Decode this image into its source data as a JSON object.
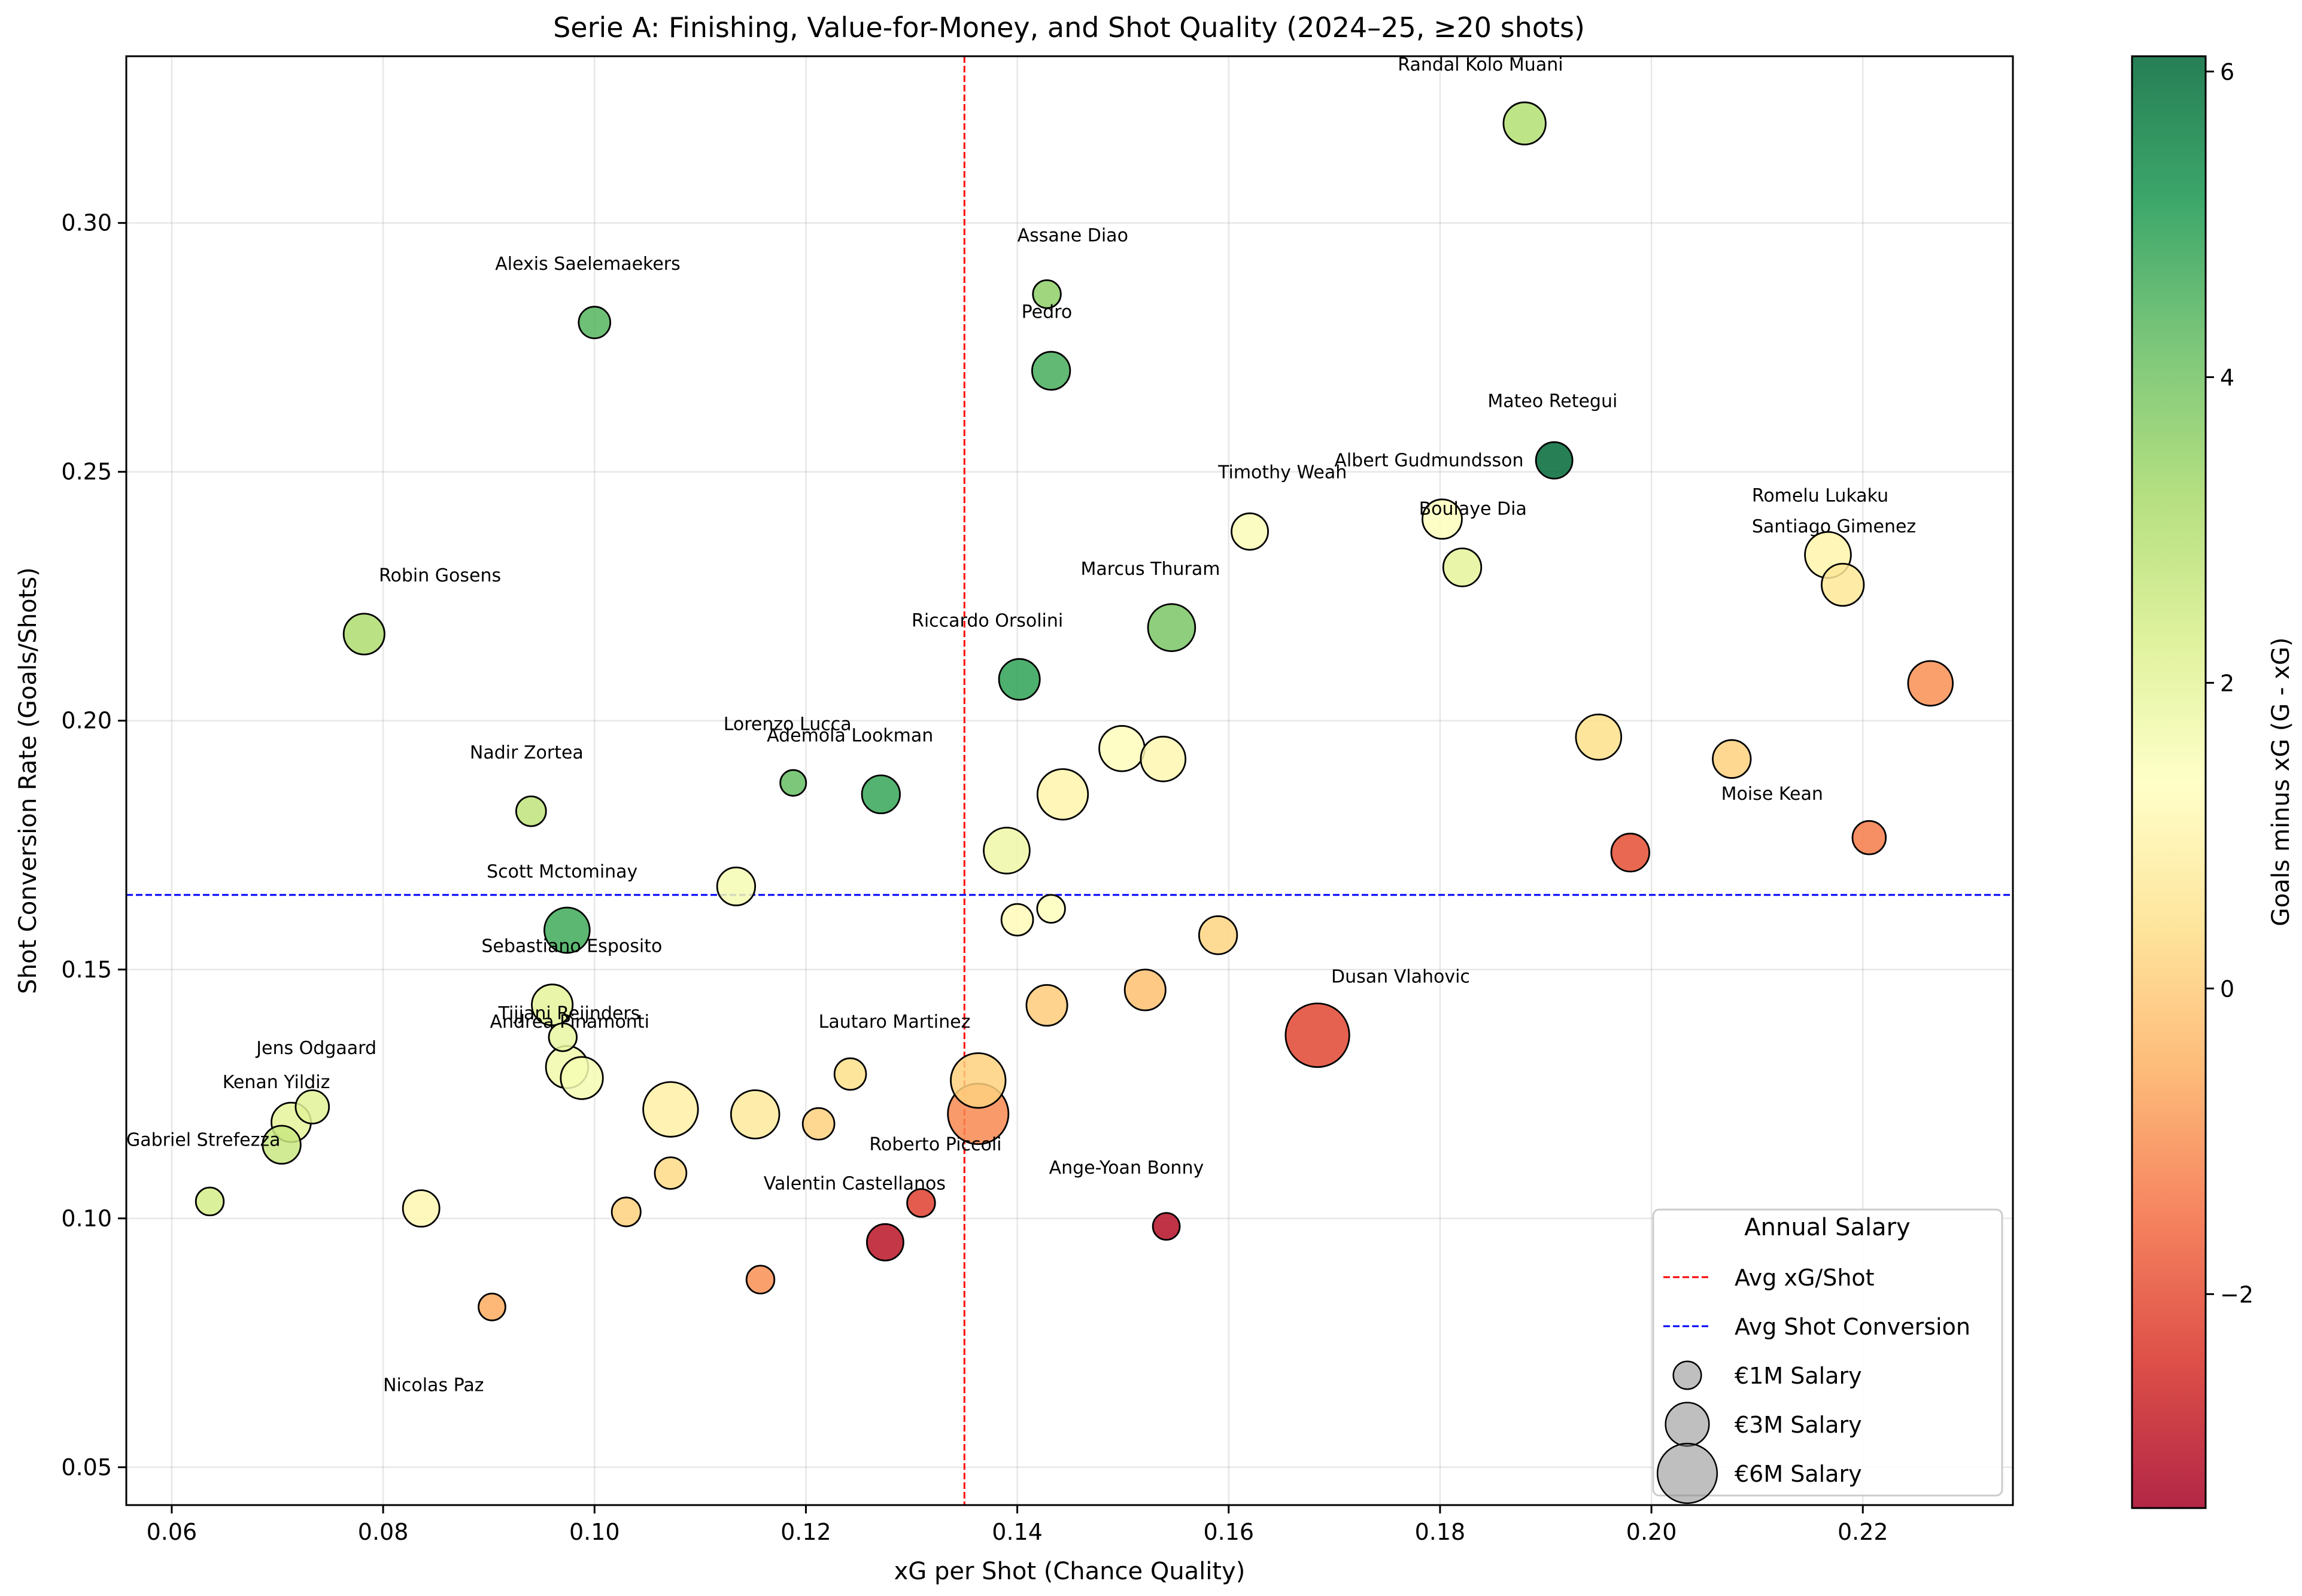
{
  "chart_data": {
    "type": "scatter",
    "title": "Serie A: Finishing, Value-for-Money, and Shot Quality (2024–25, ≥20 shots)",
    "xlabel": "xG per Shot (Chance Quality)",
    "ylabel": "Shot Conversion Rate (Goals/Shots)",
    "xlim": [
      0.0557,
      0.2342
    ],
    "ylim": [
      0.0424,
      0.3335
    ],
    "xticks": [
      {
        "v": 0.06,
        "label": "0.06"
      },
      {
        "v": 0.08,
        "label": "0.08"
      },
      {
        "v": 0.1,
        "label": "0.10"
      },
      {
        "v": 0.12,
        "label": "0.12"
      },
      {
        "v": 0.14,
        "label": "0.14"
      },
      {
        "v": 0.16,
        "label": "0.16"
      },
      {
        "v": 0.18,
        "label": "0.18"
      },
      {
        "v": 0.2,
        "label": "0.20"
      },
      {
        "v": 0.22,
        "label": "0.22"
      }
    ],
    "yticks": [
      {
        "v": 0.05,
        "label": "0.05"
      },
      {
        "v": 0.1,
        "label": "0.10"
      },
      {
        "v": 0.15,
        "label": "0.15"
      },
      {
        "v": 0.2,
        "label": "0.20"
      },
      {
        "v": 0.25,
        "label": "0.25"
      },
      {
        "v": 0.3,
        "label": "0.30"
      }
    ],
    "grid": true,
    "avg_xg_per_shot": 0.135,
    "avg_shot_conversion": 0.165,
    "colorbar": {
      "label": "Goals minus xG (G - xG)",
      "min": -3.4,
      "max": 6.1,
      "ticks": [
        {
          "v": -2,
          "label": "−2"
        },
        {
          "v": 0,
          "label": "0"
        },
        {
          "v": 2,
          "label": "2"
        },
        {
          "v": 4,
          "label": "4"
        },
        {
          "v": 6,
          "label": "6"
        }
      ],
      "colormap": "RdYlGn",
      "stops": [
        "#a50026",
        "#d73027",
        "#f46d43",
        "#fdae61",
        "#fee08b",
        "#ffffbf",
        "#d9ef8b",
        "#a6d96a",
        "#66bd63",
        "#1a9850",
        "#006837"
      ]
    },
    "legend": {
      "title": "Annual Salary",
      "position": "lower right",
      "items": [
        {
          "label": "Avg xG/Shot",
          "kind": "line",
          "color": "#ff0000"
        },
        {
          "label": "Avg Shot Conversion",
          "kind": "line",
          "color": "#0000ff"
        },
        {
          "label": "€1M Salary",
          "kind": "bubble",
          "salary_m": 1
        },
        {
          "label": "€3M Salary",
          "kind": "bubble",
          "salary_m": 3
        },
        {
          "label": "€6M Salary",
          "kind": "bubble",
          "salary_m": 6
        }
      ]
    },
    "points": [
      {
        "name": "Randal Kolo Muani",
        "x": 0.188,
        "y": 0.32,
        "g_minus_xg": 3.0,
        "salary_m": 2.8,
        "label_shown": true
      },
      {
        "name": "Assane Diao",
        "x": 0.1428,
        "y": 0.2857,
        "g_minus_xg": 3.6,
        "salary_m": 1.0,
        "label_shown": true
      },
      {
        "name": "Pedro",
        "x": 0.1432,
        "y": 0.2703,
        "g_minus_xg": 4.6,
        "salary_m": 2.2,
        "label_shown": true
      },
      {
        "name": "Alexis Saelemaekers",
        "x": 0.1,
        "y": 0.28,
        "g_minus_xg": 4.4,
        "salary_m": 1.4,
        "label_shown": true
      },
      {
        "name": "Mateo Retegui",
        "x": 0.1908,
        "y": 0.2523,
        "g_minus_xg": 6.1,
        "salary_m": 2.0,
        "label_shown": true
      },
      {
        "name": "Timothy Weah",
        "x": 0.162,
        "y": 0.238,
        "g_minus_xg": 1.5,
        "salary_m": 2.0,
        "label_shown": true
      },
      {
        "name": "Albert Gudmundsson",
        "x": 0.1802,
        "y": 0.2405,
        "g_minus_xg": 1.4,
        "salary_m": 2.4,
        "label_shown": true
      },
      {
        "name": "Boulaye Dia",
        "x": 0.1821,
        "y": 0.2308,
        "g_minus_xg": 2.0,
        "salary_m": 2.2,
        "label_shown": true
      },
      {
        "name": "Romelu Lukaku",
        "x": 0.2167,
        "y": 0.2333,
        "g_minus_xg": 1.0,
        "salary_m": 3.4,
        "label_shown": true
      },
      {
        "name": "Santiago Gimenez",
        "x": 0.2181,
        "y": 0.2273,
        "g_minus_xg": 0.6,
        "salary_m": 2.8,
        "label_shown": true
      },
      {
        "name": "Robin Gosens",
        "x": 0.0782,
        "y": 0.2174,
        "g_minus_xg": 3.1,
        "salary_m": 2.6,
        "label_shown": true
      },
      {
        "name": "Marcus Thuram",
        "x": 0.1546,
        "y": 0.2187,
        "g_minus_xg": 3.9,
        "salary_m": 3.6,
        "label_shown": true
      },
      {
        "name": "Riccardo Orsolini",
        "x": 0.1402,
        "y": 0.2083,
        "g_minus_xg": 4.9,
        "salary_m": 2.6,
        "label_shown": true
      },
      {
        "name": "",
        "x": 0.2264,
        "y": 0.2075,
        "g_minus_xg": -1.0,
        "salary_m": 3.2,
        "label_shown": false
      },
      {
        "name": "",
        "x": 0.195,
        "y": 0.1967,
        "g_minus_xg": 0.4,
        "salary_m": 3.3,
        "label_shown": false
      },
      {
        "name": "",
        "x": 0.1499,
        "y": 0.1944,
        "g_minus_xg": 1.3,
        "salary_m": 3.3,
        "label_shown": false
      },
      {
        "name": "",
        "x": 0.1538,
        "y": 0.1923,
        "g_minus_xg": 1.1,
        "salary_m": 3.2,
        "label_shown": false
      },
      {
        "name": "",
        "x": 0.2076,
        "y": 0.1923,
        "g_minus_xg": 0.1,
        "salary_m": 2.2,
        "label_shown": false
      },
      {
        "name": "Lorenzo Lucca",
        "x": 0.1188,
        "y": 0.1875,
        "g_minus_xg": 4.2,
        "salary_m": 0.8,
        "label_shown": true
      },
      {
        "name": "Ademola Lookman",
        "x": 0.1271,
        "y": 0.1852,
        "g_minus_xg": 4.8,
        "salary_m": 2.2,
        "label_shown": true
      },
      {
        "name": "",
        "x": 0.1443,
        "y": 0.1852,
        "g_minus_xg": 1.0,
        "salary_m": 4.2,
        "label_shown": false
      },
      {
        "name": "Nadir Zortea",
        "x": 0.094,
        "y": 0.1818,
        "g_minus_xg": 2.8,
        "salary_m": 1.2,
        "label_shown": true
      },
      {
        "name": "",
        "x": 0.2206,
        "y": 0.1765,
        "g_minus_xg": -1.3,
        "salary_m": 1.6,
        "label_shown": false
      },
      {
        "name": "",
        "x": 0.139,
        "y": 0.1739,
        "g_minus_xg": 1.8,
        "salary_m": 3.4,
        "label_shown": false
      },
      {
        "name": "Moise Kean",
        "x": 0.198,
        "y": 0.1735,
        "g_minus_xg": -2.0,
        "salary_m": 2.2,
        "label_shown": true
      },
      {
        "name": "",
        "x": 0.1134,
        "y": 0.1667,
        "g_minus_xg": 1.6,
        "salary_m": 2.2,
        "label_shown": false
      },
      {
        "name": "",
        "x": 0.1432,
        "y": 0.1622,
        "g_minus_xg": 1.4,
        "salary_m": 1.0,
        "label_shown": false
      },
      {
        "name": "",
        "x": 0.14,
        "y": 0.16,
        "g_minus_xg": 1.2,
        "salary_m": 1.4,
        "label_shown": false
      },
      {
        "name": "Scott Mctominay",
        "x": 0.0974,
        "y": 0.1579,
        "g_minus_xg": 4.7,
        "salary_m": 3.3,
        "label_shown": true
      },
      {
        "name": "",
        "x": 0.159,
        "y": 0.1569,
        "g_minus_xg": 0.2,
        "salary_m": 2.2,
        "label_shown": false
      },
      {
        "name": "",
        "x": 0.1521,
        "y": 0.1459,
        "g_minus_xg": -0.2,
        "salary_m": 2.6,
        "label_shown": false
      },
      {
        "name": "",
        "x": 0.1428,
        "y": 0.1428,
        "g_minus_xg": 0.0,
        "salary_m": 2.6,
        "label_shown": false
      },
      {
        "name": "Sebastiano Esposito",
        "x": 0.096,
        "y": 0.1429,
        "g_minus_xg": 2.0,
        "salary_m": 2.6,
        "label_shown": true
      },
      {
        "name": "Dusan Vlahovic",
        "x": 0.1684,
        "y": 0.1368,
        "g_minus_xg": -2.1,
        "salary_m": 6.9,
        "label_shown": true
      },
      {
        "name": "Tijjani Reijnders",
        "x": 0.097,
        "y": 0.1364,
        "g_minus_xg": 1.9,
        "salary_m": 1.0,
        "label_shown": true
      },
      {
        "name": "Andrea Pinamonti",
        "x": 0.0974,
        "y": 0.1304,
        "g_minus_xg": 1.7,
        "salary_m": 2.8,
        "label_shown": true
      },
      {
        "name": "",
        "x": 0.0988,
        "y": 0.1282,
        "g_minus_xg": 1.6,
        "salary_m": 2.8,
        "label_shown": false
      },
      {
        "name": "Lautaro Martinez",
        "x": 0.1363,
        "y": 0.1277,
        "g_minus_xg": 0.1,
        "salary_m": 5.0,
        "label_shown": true
      },
      {
        "name": "",
        "x": 0.1242,
        "y": 0.129,
        "g_minus_xg": 0.4,
        "salary_m": 1.4,
        "label_shown": false
      },
      {
        "name": "",
        "x": 0.1072,
        "y": 0.1219,
        "g_minus_xg": 0.9,
        "salary_m": 5.0,
        "label_shown": false
      },
      {
        "name": "",
        "x": 0.1152,
        "y": 0.1209,
        "g_minus_xg": 0.7,
        "salary_m": 3.8,
        "label_shown": false
      },
      {
        "name": "",
        "x": 0.1363,
        "y": 0.121,
        "g_minus_xg": -1.1,
        "salary_m": 6.2,
        "label_shown": false
      },
      {
        "name": "",
        "x": 0.1212,
        "y": 0.119,
        "g_minus_xg": 0.1,
        "salary_m": 1.4,
        "label_shown": false
      },
      {
        "name": "Jens Odgaard",
        "x": 0.0733,
        "y": 0.1224,
        "g_minus_xg": 2.1,
        "salary_m": 1.6,
        "label_shown": true
      },
      {
        "name": "Kenan Yildiz",
        "x": 0.0713,
        "y": 0.1193,
        "g_minus_xg": 2.0,
        "salary_m": 2.4,
        "label_shown": true
      },
      {
        "name": "Gabriel Strefezza",
        "x": 0.0704,
        "y": 0.1148,
        "g_minus_xg": 2.6,
        "salary_m": 2.2,
        "label_shown": true
      },
      {
        "name": "Roberto Piccoli",
        "x": 0.1309,
        "y": 0.1031,
        "g_minus_xg": -2.2,
        "salary_m": 1.0,
        "label_shown": true
      },
      {
        "name": "",
        "x": 0.1072,
        "y": 0.1091,
        "g_minus_xg": 0.3,
        "salary_m": 1.4,
        "label_shown": false
      },
      {
        "name": "",
        "x": 0.0636,
        "y": 0.1034,
        "g_minus_xg": 2.4,
        "salary_m": 1.0,
        "label_shown": false
      },
      {
        "name": "",
        "x": 0.0836,
        "y": 0.102,
        "g_minus_xg": 1.1,
        "salary_m": 2.0,
        "label_shown": false
      },
      {
        "name": "",
        "x": 0.103,
        "y": 0.1013,
        "g_minus_xg": 0.1,
        "salary_m": 1.1,
        "label_shown": false
      },
      {
        "name": "Valentin Castellanos",
        "x": 0.1275,
        "y": 0.0952,
        "g_minus_xg": -3.0,
        "salary_m": 2.0,
        "label_shown": true
      },
      {
        "name": "Ange-Yoan Bonny",
        "x": 0.1541,
        "y": 0.0984,
        "g_minus_xg": -3.1,
        "salary_m": 0.9,
        "label_shown": true
      },
      {
        "name": "",
        "x": 0.1157,
        "y": 0.0877,
        "g_minus_xg": -1.0,
        "salary_m": 1.0,
        "label_shown": false
      },
      {
        "name": "Nicolas Paz",
        "x": 0.0903,
        "y": 0.0822,
        "g_minus_xg": -0.6,
        "salary_m": 0.9,
        "label_shown": true
      }
    ],
    "labels": [
      {
        "name": "Randal Kolo Muani",
        "lx": 0.176,
        "ly": 0.3306
      },
      {
        "name": "Assane Diao",
        "lx": 0.14,
        "ly": 0.2963
      },
      {
        "name": "Pedro",
        "lx": 0.1404,
        "ly": 0.2809
      },
      {
        "name": "Alexis Saelemaekers",
        "lx": 0.0906,
        "ly": 0.2906
      },
      {
        "name": "Mateo Retegui",
        "lx": 0.1845,
        "ly": 0.263
      },
      {
        "name": "Timothy Weah",
        "lx": 0.159,
        "ly": 0.2487
      },
      {
        "name": "Albert Gudmundsson",
        "lx": 0.17,
        "ly": 0.2511
      },
      {
        "name": "Boulaye Dia",
        "lx": 0.178,
        "ly": 0.2414
      },
      {
        "name": "Romelu Lukaku",
        "lx": 0.2095,
        "ly": 0.244
      },
      {
        "name": "Santiago Gimenez",
        "lx": 0.2095,
        "ly": 0.2378
      },
      {
        "name": "Robin Gosens",
        "lx": 0.0796,
        "ly": 0.228
      },
      {
        "name": "Marcus Thuram",
        "lx": 0.146,
        "ly": 0.2293
      },
      {
        "name": "Riccardo Orsolini",
        "lx": 0.13,
        "ly": 0.2189
      },
      {
        "name": "Lorenzo Lucca",
        "lx": 0.1122,
        "ly": 0.1981
      },
      {
        "name": "Ademola Lookman",
        "lx": 0.1163,
        "ly": 0.1958
      },
      {
        "name": "Nadir Zortea",
        "lx": 0.0882,
        "ly": 0.1924
      },
      {
        "name": "Moise Kean",
        "lx": 0.2066,
        "ly": 0.1841
      },
      {
        "name": "Scott Mctominay",
        "lx": 0.0898,
        "ly": 0.1685
      },
      {
        "name": "Sebastiano Esposito",
        "lx": 0.0893,
        "ly": 0.1535
      },
      {
        "name": "Dusan Vlahovic",
        "lx": 0.1697,
        "ly": 0.1474
      },
      {
        "name": "Tijjani Reijnders",
        "lx": 0.0909,
        "ly": 0.14
      },
      {
        "name": "Andrea Pinamonti",
        "lx": 0.0901,
        "ly": 0.1383
      },
      {
        "name": "Lautaro Martinez",
        "lx": 0.1212,
        "ly": 0.1383
      },
      {
        "name": "Jens Odgaard",
        "lx": 0.068,
        "ly": 0.133
      },
      {
        "name": "Kenan Yildiz",
        "lx": 0.0648,
        "ly": 0.1262
      },
      {
        "name": "Gabriel Strefezza",
        "lx": 0.0557,
        "ly": 0.1146
      },
      {
        "name": "Roberto Piccoli",
        "lx": 0.126,
        "ly": 0.1137
      },
      {
        "name": "Valentin Castellanos",
        "lx": 0.116,
        "ly": 0.1058
      },
      {
        "name": "Ange-Yoan Bonny",
        "lx": 0.143,
        "ly": 0.109
      },
      {
        "name": "Nicolas Paz",
        "lx": 0.08,
        "ly": 0.0653
      }
    ]
  }
}
